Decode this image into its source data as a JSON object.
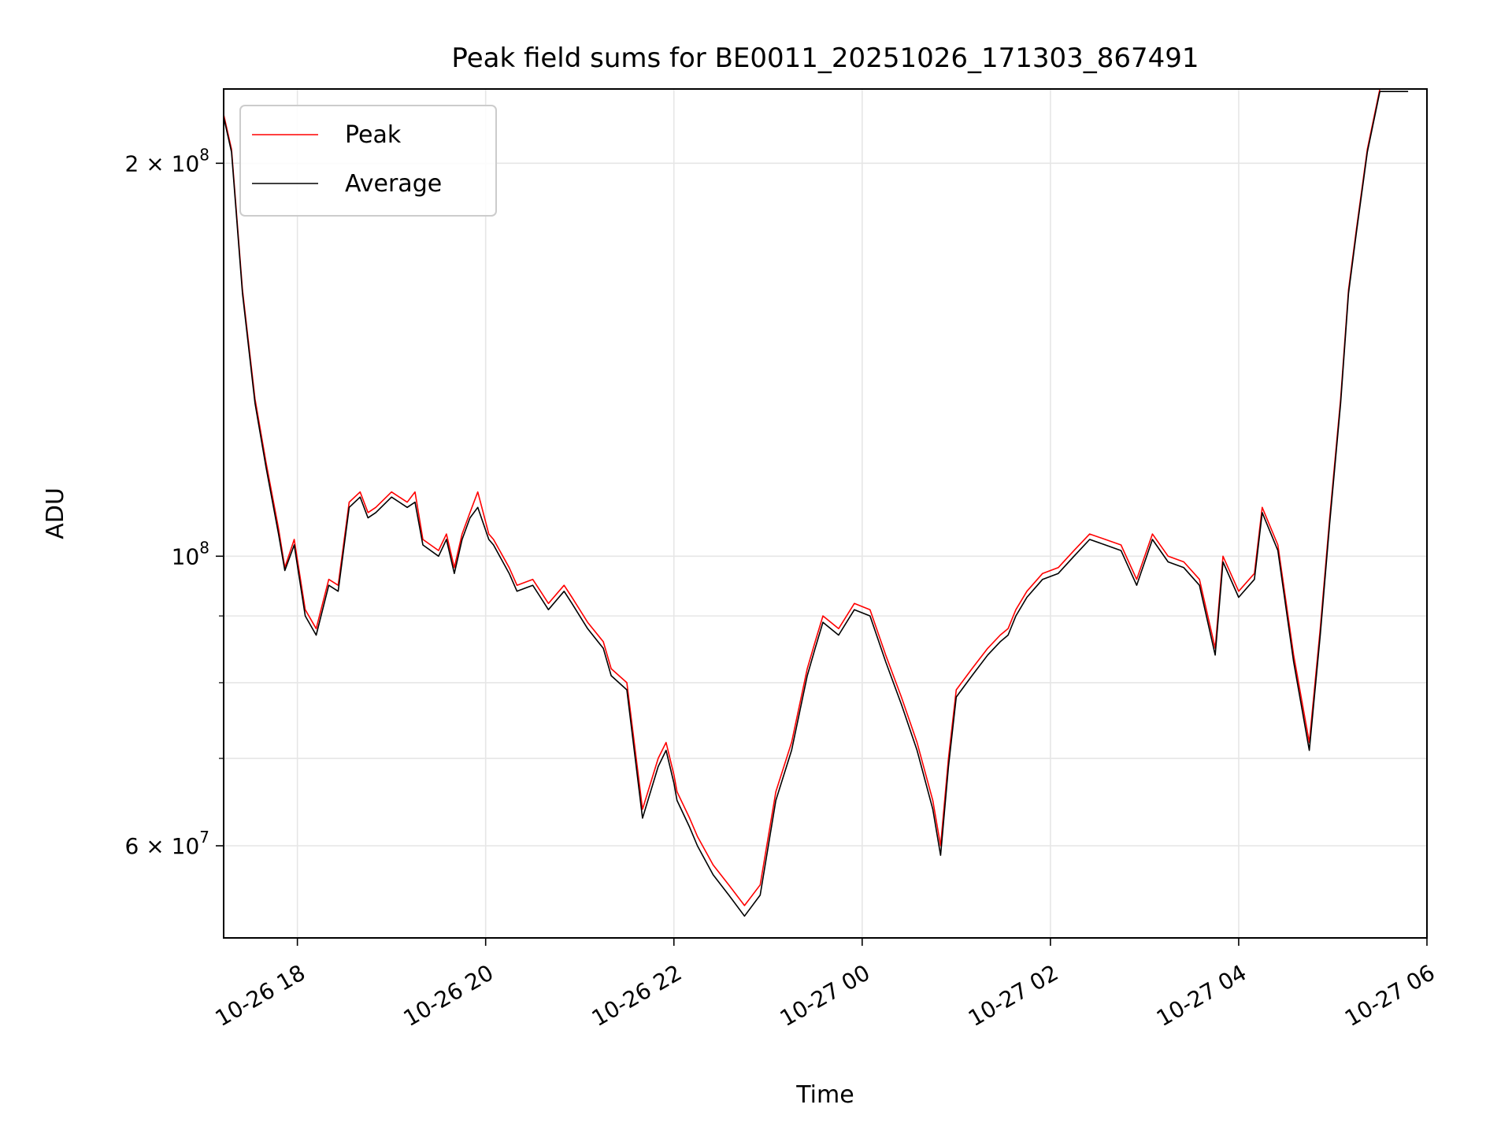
{
  "chart_data": {
    "type": "line",
    "title": "Peak field sums for BE0011_20251026_171303_867491",
    "xlabel": "Time",
    "ylabel": "ADU",
    "yscale": "log",
    "grid": true,
    "legend": "top-left",
    "xlim": [
      "2025-10-26 17:13",
      "2025-10-27 06:00"
    ],
    "ylim": [
      51000000,
      228000000
    ],
    "x_ticks": [
      {
        "value": "2025-10-26 18:00",
        "label": "10-26 18"
      },
      {
        "value": "2025-10-26 20:00",
        "label": "10-26 20"
      },
      {
        "value": "2025-10-26 22:00",
        "label": "10-26 22"
      },
      {
        "value": "2025-10-27 00:00",
        "label": "10-27 00"
      },
      {
        "value": "2025-10-27 02:00",
        "label": "10-27 02"
      },
      {
        "value": "2025-10-27 04:00",
        "label": "10-27 04"
      },
      {
        "value": "2025-10-27 06:00",
        "label": "10-27 06"
      }
    ],
    "y_ticks": [
      {
        "value": 60000000,
        "label": "6×10⁷",
        "base": "6 × 10",
        "exp": "7"
      },
      {
        "value": 100000000,
        "label": "10⁸",
        "base": "10",
        "exp": "8"
      },
      {
        "value": 200000000,
        "label": "2×10⁸",
        "base": "2 × 10",
        "exp": "8"
      }
    ],
    "y_minor_ticks": [
      70000000,
      80000000,
      90000000
    ],
    "series": [
      {
        "name": "Peak",
        "color": "#ff0000",
        "x": [
          "2025-10-26 17:13",
          "2025-10-26 17:18",
          "2025-10-26 17:25",
          "2025-10-26 17:33",
          "2025-10-26 17:40",
          "2025-10-26 17:48",
          "2025-10-26 17:52",
          "2025-10-26 17:58",
          "2025-10-26 18:05",
          "2025-10-26 18:12",
          "2025-10-26 18:20",
          "2025-10-26 18:26",
          "2025-10-26 18:33",
          "2025-10-26 18:40",
          "2025-10-26 18:45",
          "2025-10-26 18:50",
          "2025-10-26 19:00",
          "2025-10-26 19:10",
          "2025-10-26 19:15",
          "2025-10-26 19:20",
          "2025-10-26 19:30",
          "2025-10-26 19:35",
          "2025-10-26 19:40",
          "2025-10-26 19:45",
          "2025-10-26 19:50",
          "2025-10-26 19:55",
          "2025-10-26 20:02",
          "2025-10-26 20:05",
          "2025-10-26 20:15",
          "2025-10-26 20:20",
          "2025-10-26 20:30",
          "2025-10-26 20:35",
          "2025-10-26 20:40",
          "2025-10-26 20:50",
          "2025-10-26 20:55",
          "2025-10-26 21:05",
          "2025-10-26 21:15",
          "2025-10-26 21:20",
          "2025-10-26 21:30",
          "2025-10-26 21:40",
          "2025-10-26 21:50",
          "2025-10-26 21:55",
          "2025-10-26 22:00",
          "2025-10-26 22:02",
          "2025-10-26 22:10",
          "2025-10-26 22:15",
          "2025-10-26 22:25",
          "2025-10-26 22:35",
          "2025-10-26 22:45",
          "2025-10-26 22:55",
          "2025-10-26 23:05",
          "2025-10-26 23:15",
          "2025-10-26 23:25",
          "2025-10-26 23:30",
          "2025-10-26 23:35",
          "2025-10-26 23:45",
          "2025-10-26 23:55",
          "2025-10-27 00:05",
          "2025-10-27 00:15",
          "2025-10-27 00:25",
          "2025-10-27 00:35",
          "2025-10-27 00:45",
          "2025-10-27 00:50",
          "2025-10-27 00:55",
          "2025-10-27 01:00",
          "2025-10-27 01:10",
          "2025-10-27 01:20",
          "2025-10-27 01:28",
          "2025-10-27 01:33",
          "2025-10-27 01:38",
          "2025-10-27 01:45",
          "2025-10-27 01:55",
          "2025-10-27 02:05",
          "2025-10-27 02:15",
          "2025-10-27 02:25",
          "2025-10-27 02:35",
          "2025-10-27 02:45",
          "2025-10-27 02:55",
          "2025-10-27 03:05",
          "2025-10-27 03:15",
          "2025-10-27 03:25",
          "2025-10-27 03:35",
          "2025-10-27 03:45",
          "2025-10-27 03:50",
          "2025-10-27 04:00",
          "2025-10-27 04:10",
          "2025-10-27 04:15",
          "2025-10-27 04:25",
          "2025-10-27 04:35",
          "2025-10-27 04:45",
          "2025-10-27 04:52",
          "2025-10-27 04:58",
          "2025-10-27 05:05",
          "2025-10-27 05:10",
          "2025-10-27 05:15",
          "2025-10-27 05:22",
          "2025-10-27 05:30",
          "2025-10-27 05:35",
          "2025-10-27 05:40",
          "2025-10-27 05:45",
          "2025-10-27 05:48"
        ],
        "y": [
          218000000,
          205000000,
          160000000,
          132000000,
          118000000,
          105000000,
          98000000,
          103000000,
          91000000,
          88000000,
          96000000,
          95000000,
          110000000,
          112000000,
          108000000,
          109000000,
          112000000,
          110000000,
          112000000,
          103000000,
          101000000,
          104000000,
          98000000,
          104000000,
          108000000,
          112000000,
          104000000,
          103000000,
          98000000,
          95000000,
          96000000,
          94000000,
          92000000,
          95000000,
          93000000,
          89000000,
          86000000,
          82000000,
          80000000,
          64000000,
          70000000,
          72000000,
          68000000,
          66000000,
          63000000,
          61000000,
          58000000,
          56000000,
          54000000,
          56000000,
          66000000,
          72000000,
          82000000,
          86000000,
          90000000,
          88000000,
          92000000,
          91000000,
          84000000,
          78000000,
          72000000,
          65000000,
          60000000,
          70000000,
          79000000,
          82000000,
          85000000,
          87000000,
          88000000,
          91000000,
          94000000,
          97000000,
          98000000,
          101000000,
          104000000,
          103000000,
          102000000,
          96000000,
          104000000,
          100000000,
          99000000,
          96000000,
          85000000,
          100000000,
          94000000,
          97000000,
          109000000,
          102000000,
          84000000,
          72000000,
          88000000,
          107000000,
          132000000,
          160000000,
          178000000,
          205000000,
          228000000,
          228000000,
          228000000,
          228000000,
          228000000
        ]
      },
      {
        "name": "Average",
        "color": "#000000",
        "x": [
          "2025-10-26 17:13",
          "2025-10-26 17:18",
          "2025-10-26 17:25",
          "2025-10-26 17:33",
          "2025-10-26 17:40",
          "2025-10-26 17:48",
          "2025-10-26 17:52",
          "2025-10-26 17:58",
          "2025-10-26 18:05",
          "2025-10-26 18:12",
          "2025-10-26 18:20",
          "2025-10-26 18:26",
          "2025-10-26 18:33",
          "2025-10-26 18:40",
          "2025-10-26 18:45",
          "2025-10-26 18:50",
          "2025-10-26 19:00",
          "2025-10-26 19:10",
          "2025-10-26 19:15",
          "2025-10-26 19:20",
          "2025-10-26 19:30",
          "2025-10-26 19:35",
          "2025-10-26 19:40",
          "2025-10-26 19:45",
          "2025-10-26 19:50",
          "2025-10-26 19:55",
          "2025-10-26 20:02",
          "2025-10-26 20:05",
          "2025-10-26 20:15",
          "2025-10-26 20:20",
          "2025-10-26 20:30",
          "2025-10-26 20:35",
          "2025-10-26 20:40",
          "2025-10-26 20:50",
          "2025-10-26 20:55",
          "2025-10-26 21:05",
          "2025-10-26 21:15",
          "2025-10-26 21:20",
          "2025-10-26 21:30",
          "2025-10-26 21:40",
          "2025-10-26 21:50",
          "2025-10-26 21:55",
          "2025-10-26 22:00",
          "2025-10-26 22:02",
          "2025-10-26 22:10",
          "2025-10-26 22:15",
          "2025-10-26 22:25",
          "2025-10-26 22:35",
          "2025-10-26 22:45",
          "2025-10-26 22:55",
          "2025-10-26 23:05",
          "2025-10-26 23:15",
          "2025-10-26 23:25",
          "2025-10-26 23:30",
          "2025-10-26 23:35",
          "2025-10-26 23:45",
          "2025-10-26 23:55",
          "2025-10-27 00:05",
          "2025-10-27 00:15",
          "2025-10-27 00:25",
          "2025-10-27 00:35",
          "2025-10-27 00:45",
          "2025-10-27 00:50",
          "2025-10-27 00:55",
          "2025-10-27 01:00",
          "2025-10-27 01:10",
          "2025-10-27 01:20",
          "2025-10-27 01:28",
          "2025-10-27 01:33",
          "2025-10-27 01:38",
          "2025-10-27 01:45",
          "2025-10-27 01:55",
          "2025-10-27 02:05",
          "2025-10-27 02:15",
          "2025-10-27 02:25",
          "2025-10-27 02:35",
          "2025-10-27 02:45",
          "2025-10-27 02:55",
          "2025-10-27 03:05",
          "2025-10-27 03:15",
          "2025-10-27 03:25",
          "2025-10-27 03:35",
          "2025-10-27 03:45",
          "2025-10-27 03:50",
          "2025-10-27 04:00",
          "2025-10-27 04:10",
          "2025-10-27 04:15",
          "2025-10-27 04:25",
          "2025-10-27 04:35",
          "2025-10-27 04:45",
          "2025-10-27 04:52",
          "2025-10-27 04:58",
          "2025-10-27 05:05",
          "2025-10-27 05:10",
          "2025-10-27 05:15",
          "2025-10-27 05:22",
          "2025-10-27 05:30",
          "2025-10-27 05:35",
          "2025-10-27 05:40",
          "2025-10-27 05:45",
          "2025-10-27 05:48"
        ],
        "y": [
          217000000,
          204000000,
          159000000,
          131000000,
          117000000,
          104000000,
          97500000,
          102000000,
          90000000,
          87000000,
          95000000,
          94000000,
          109000000,
          111000000,
          107000000,
          108000000,
          111000000,
          109000000,
          110000000,
          102000000,
          100000000,
          103000000,
          97000000,
          103000000,
          107000000,
          109000000,
          103000000,
          102000000,
          97000000,
          94000000,
          95000000,
          93000000,
          91000000,
          94000000,
          92000000,
          88000000,
          85000000,
          81000000,
          79000000,
          63000000,
          69000000,
          71000000,
          67000000,
          65000000,
          62000000,
          60000000,
          57000000,
          55000000,
          53000000,
          55000000,
          65000000,
          71000000,
          81000000,
          85000000,
          89000000,
          87000000,
          91000000,
          90000000,
          83000000,
          77000000,
          71000000,
          64000000,
          59000000,
          69000000,
          78000000,
          81000000,
          84000000,
          86000000,
          87000000,
          90000000,
          93000000,
          96000000,
          97000000,
          100000000,
          103000000,
          102000000,
          101000000,
          95000000,
          103000000,
          99000000,
          98000000,
          95000000,
          84000000,
          99000000,
          93000000,
          96000000,
          108000000,
          101000000,
          83000000,
          71000000,
          87000000,
          106000000,
          131000000,
          159000000,
          177000000,
          204000000,
          227000000,
          227000000,
          227000000,
          227000000,
          227000000
        ]
      }
    ]
  }
}
